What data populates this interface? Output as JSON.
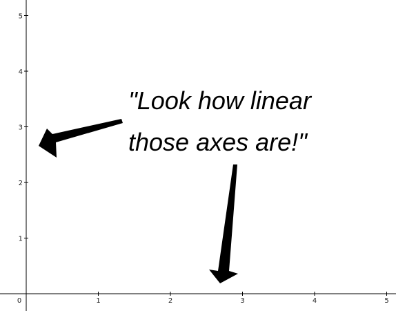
{
  "chart_data": {
    "type": "scatter",
    "title": "",
    "xlabel": "",
    "ylabel": "",
    "xlim": [
      0,
      5
    ],
    "ylim": [
      0,
      5
    ],
    "x_ticks": [
      "0",
      "1",
      "2",
      "3",
      "4",
      "5"
    ],
    "y_ticks": [
      "1",
      "2",
      "3",
      "4",
      "5"
    ],
    "grid": false,
    "series": [],
    "annotations": {
      "line1": "\"Look how linear",
      "line2": "those axes are!\""
    },
    "colors": {
      "axis": "#000000",
      "arrow": "#000000",
      "text": "#000000",
      "background": "#ffffff"
    }
  }
}
